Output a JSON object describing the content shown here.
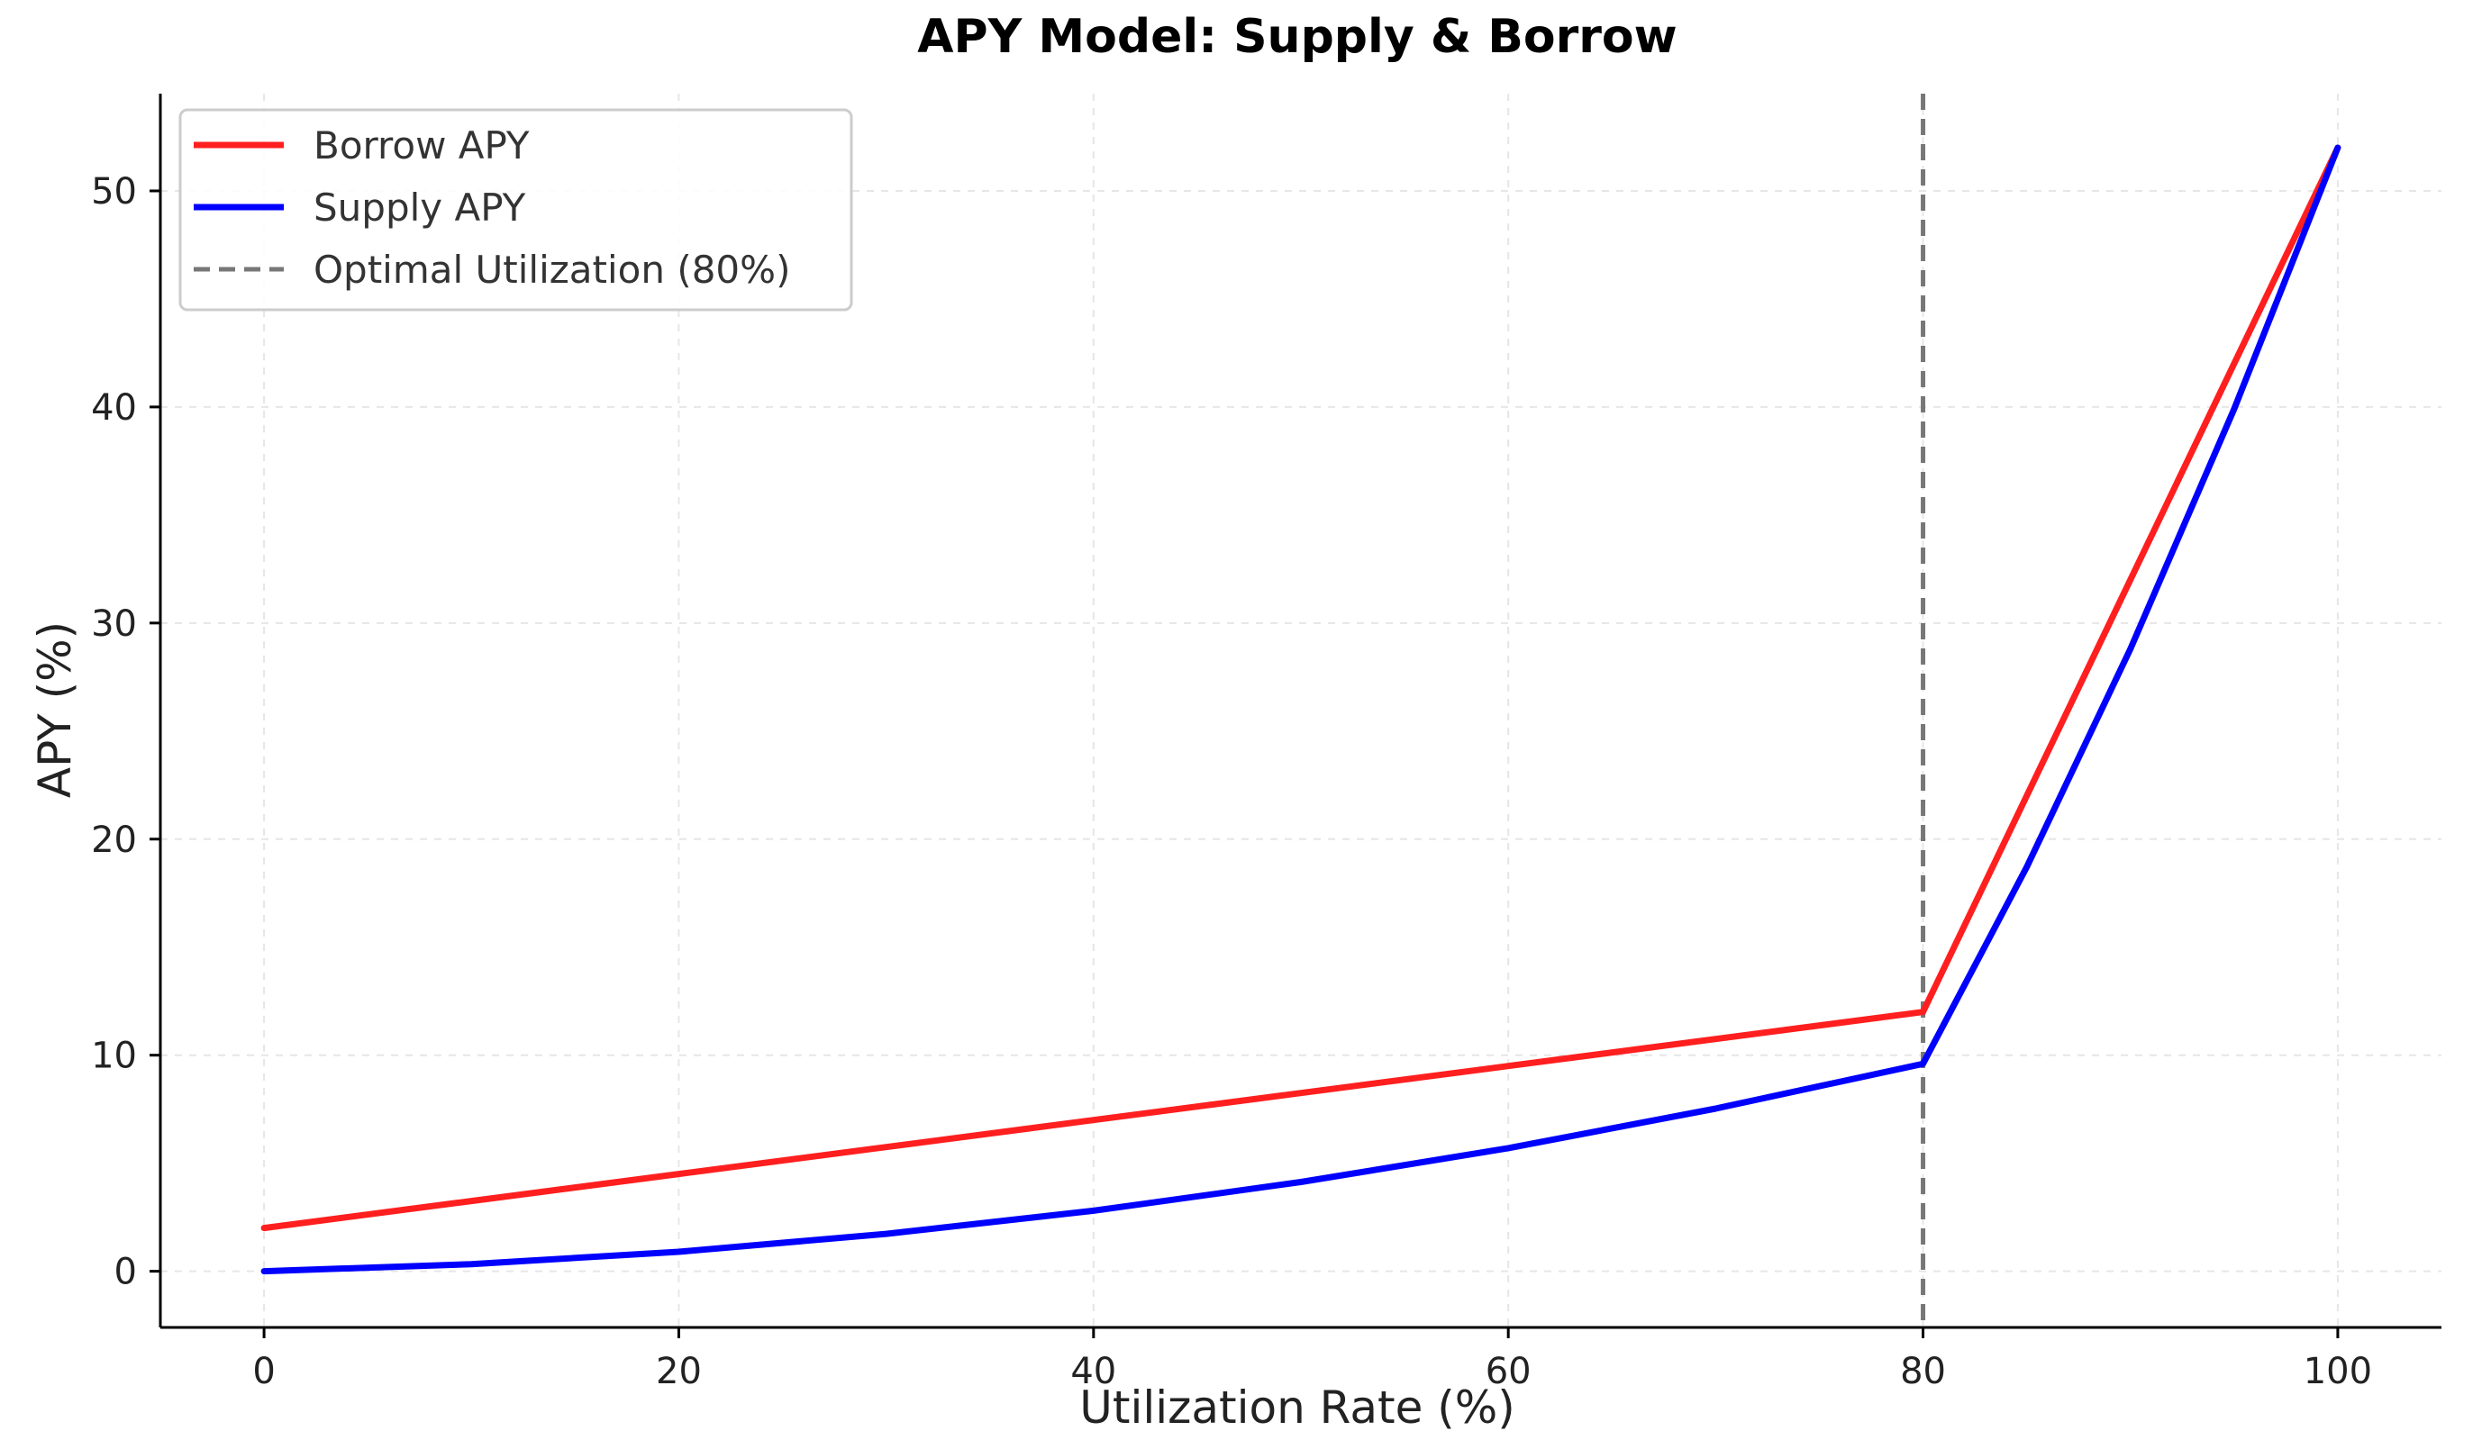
{
  "chart_data": {
    "type": "line",
    "title": "APY Model: Supply & Borrow",
    "xlabel": "Utilization Rate (%)",
    "ylabel": "APY (%)",
    "xlim": [
      -5,
      105
    ],
    "ylim": [
      -2.6,
      54.5
    ],
    "xticks": [
      0,
      20,
      40,
      60,
      80,
      100
    ],
    "yticks": [
      0,
      10,
      20,
      30,
      40,
      50
    ],
    "grid": true,
    "legend": "top-left",
    "series": [
      {
        "name": "Borrow APY",
        "color": "#ff1f1f",
        "x": [
          0,
          10,
          20,
          30,
          40,
          50,
          60,
          70,
          80,
          85,
          90,
          95,
          100
        ],
        "y": [
          2,
          3.25,
          4.5,
          5.75,
          7,
          8.25,
          9.5,
          10.75,
          12,
          22,
          32,
          42,
          52
        ]
      },
      {
        "name": "Supply APY",
        "color": "#0000ff",
        "x": [
          0,
          10,
          20,
          30,
          40,
          50,
          60,
          70,
          80,
          85,
          90,
          95,
          100
        ],
        "y": [
          0,
          0.33,
          0.9,
          1.73,
          2.8,
          4.13,
          5.7,
          7.53,
          9.6,
          18.7,
          28.8,
          39.9,
          52
        ]
      }
    ],
    "vline": {
      "name": "Optimal Utilization (80%)",
      "x": 80,
      "color": "#777777"
    }
  }
}
